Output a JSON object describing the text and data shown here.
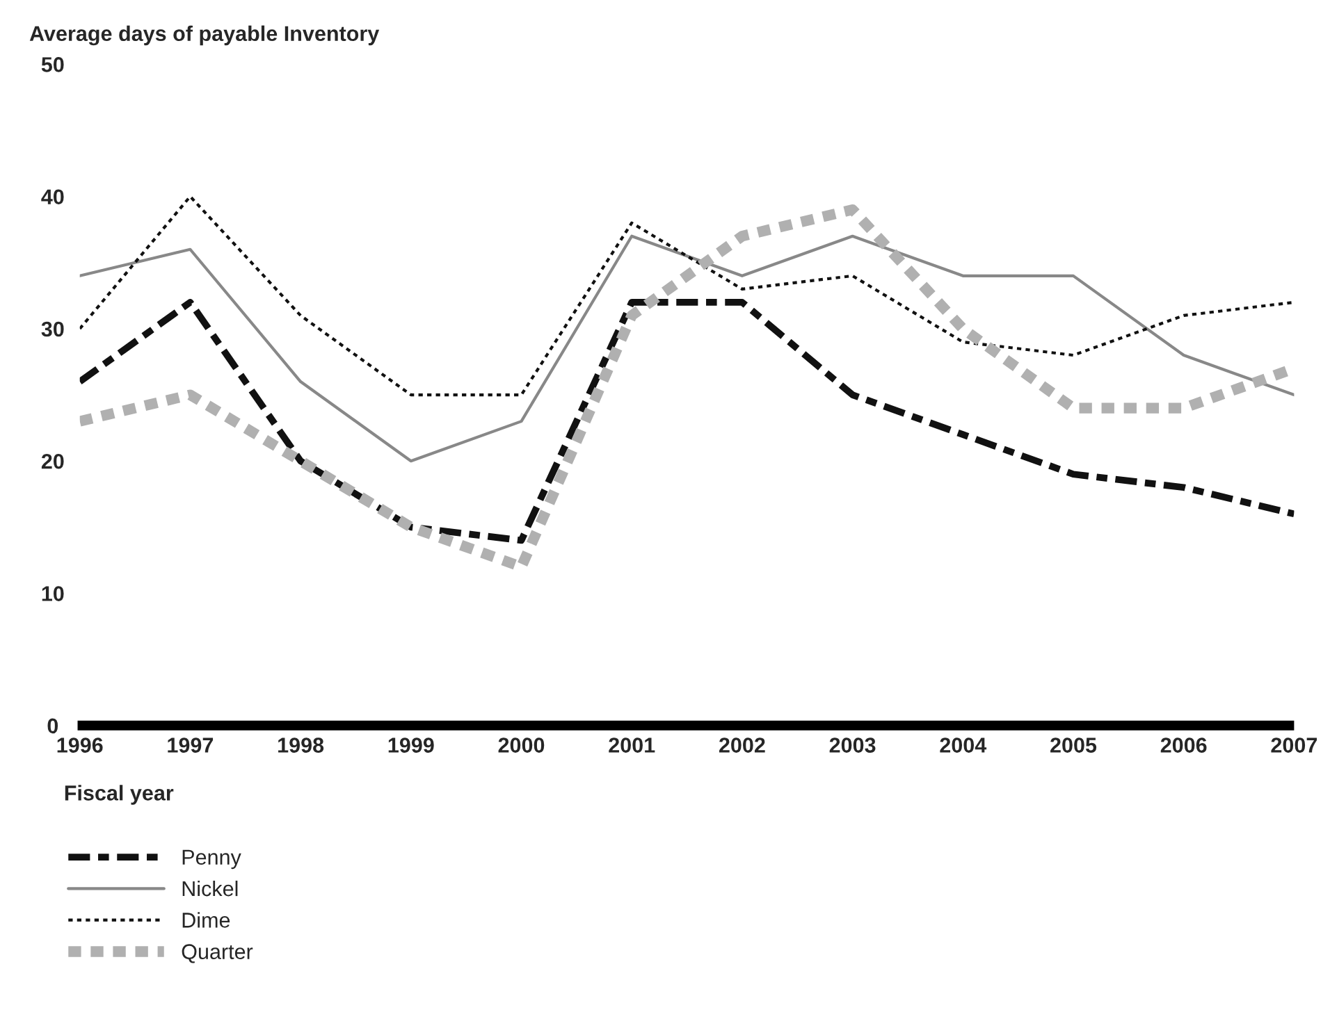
{
  "chart_data": {
    "type": "line",
    "ylabel": "Average days of payable Inventory",
    "xlabel": "Fiscal year",
    "categories": [
      "1996",
      "1997",
      "1998",
      "1999",
      "2000",
      "2001",
      "2002",
      "2003",
      "2004",
      "2005",
      "2006",
      "2007"
    ],
    "series": [
      {
        "name": "Penny",
        "color": "#111111",
        "line_style": "dashed",
        "values": [
          26,
          32,
          20,
          15,
          14,
          32,
          32,
          25,
          22,
          19,
          18,
          16
        ]
      },
      {
        "name": "Nickel",
        "color": "#888888",
        "line_style": "solid",
        "values": [
          34,
          36,
          26,
          20,
          23,
          37,
          34,
          37,
          34,
          34,
          28,
          25
        ]
      },
      {
        "name": "Dime",
        "color": "#111111",
        "line_style": "dotted",
        "values": [
          30,
          40,
          31,
          25,
          25,
          38,
          33,
          34,
          29,
          28,
          31,
          32
        ]
      },
      {
        "name": "Quarter",
        "color": "#b0b0b0",
        "line_style": "dotted",
        "values": [
          23,
          25,
          20,
          15,
          12,
          31,
          37,
          39,
          30,
          24,
          24,
          27
        ]
      }
    ],
    "ylim": [
      0,
      50
    ],
    "yticks": [
      0,
      10,
      20,
      30,
      40,
      50
    ],
    "grid": false,
    "legend": "bottom",
    "marker": "none"
  }
}
